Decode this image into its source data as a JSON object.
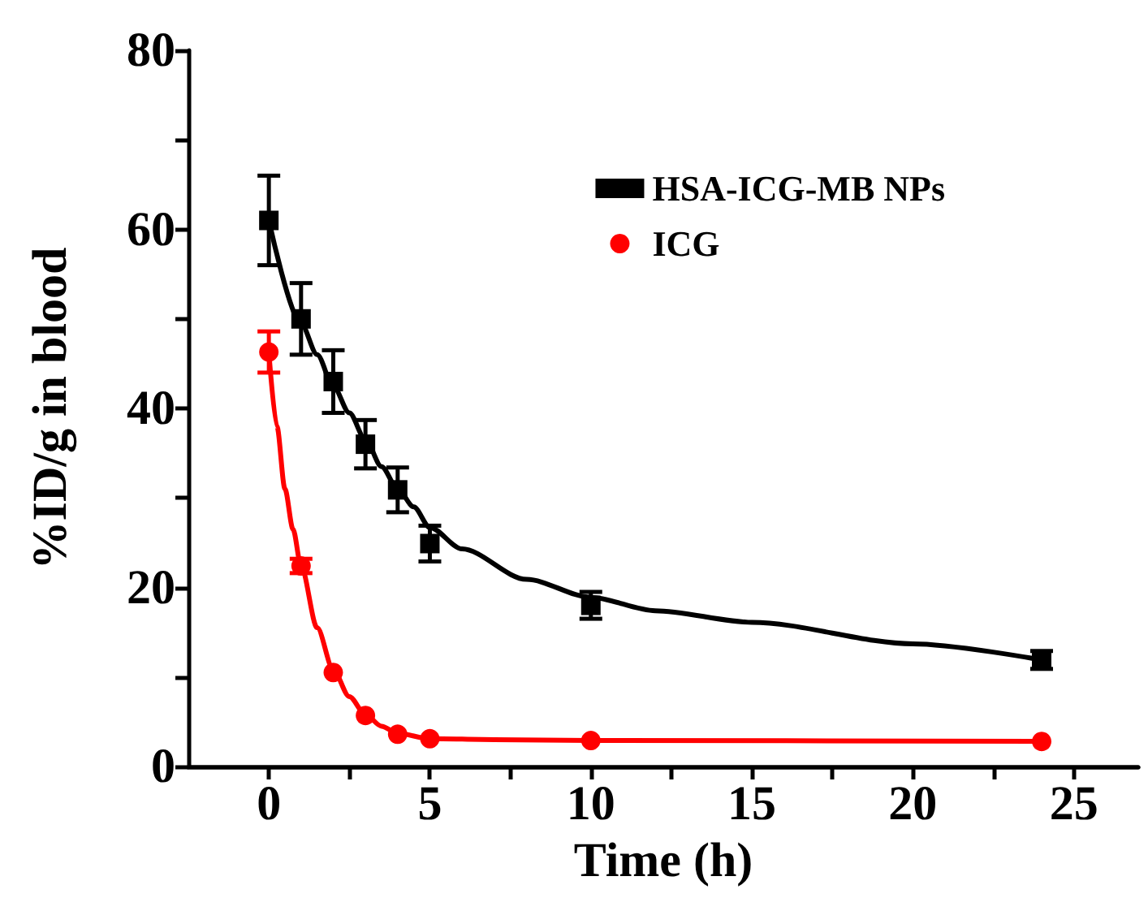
{
  "chart_data": {
    "type": "scatter",
    "xlabel": "Time (h)",
    "ylabel": "%ID/g in blood",
    "xlim": [
      -2.5,
      27
    ],
    "ylim": [
      0,
      80
    ],
    "xticks": [
      0,
      {
        "value": 2.5,
        "label": null
      },
      5,
      {
        "value": 7.5,
        "label": null
      },
      10,
      {
        "value": 12.5,
        "label": null
      },
      15,
      {
        "value": 17.5,
        "label": null
      },
      20,
      {
        "value": 22.5,
        "label": null
      },
      25
    ],
    "yticks": [
      0,
      {
        "value": 10,
        "label": null
      },
      20,
      {
        "value": 30,
        "label": null
      },
      40,
      {
        "value": 50,
        "label": null
      },
      60,
      {
        "value": 70,
        "label": null
      },
      80
    ],
    "legend": "top right",
    "grid": false,
    "series": [
      {
        "name": "HSA-ICG-MB NPs",
        "marker": "square",
        "color": "#000000",
        "x": [
          0,
          1,
          2,
          3,
          4,
          5,
          10,
          24
        ],
        "values": [
          61,
          50,
          43,
          36,
          30.9,
          24.9,
          18,
          11.9
        ],
        "errors": [
          5,
          4,
          3.5,
          2.7,
          2.5,
          2,
          1.5,
          1
        ]
      },
      {
        "name": "ICG",
        "marker": "circle",
        "color": "#ff0000",
        "x": [
          0,
          1,
          2,
          3,
          4,
          5,
          10,
          24
        ],
        "values": [
          46.3,
          22.4,
          10.5,
          5.7,
          3.6,
          3.1,
          2.9,
          2.8
        ],
        "errors": [
          2.3,
          0.8,
          null,
          null,
          null,
          null,
          null,
          null
        ]
      },
      {
        "type": "line",
        "marker": "none",
        "color": "#000000",
        "x": [
          0,
          1,
          1.5,
          2,
          2.5,
          3,
          3.5,
          4,
          4.5,
          5,
          6,
          8,
          10,
          12,
          15,
          20,
          24
        ],
        "values": [
          61,
          49.5,
          46,
          42.5,
          39.5,
          36.5,
          33.5,
          31,
          29,
          26.7,
          24.3,
          20.9,
          18.9,
          17.4,
          16.1,
          13.7,
          11.9
        ]
      },
      {
        "type": "line",
        "marker": "none",
        "color": "#ff0000",
        "x": [
          0,
          0.25,
          0.5,
          0.75,
          1,
          1.5,
          2,
          2.5,
          3,
          3.5,
          4,
          5,
          7,
          10,
          24
        ],
        "values": [
          46.3,
          38,
          31,
          26.5,
          22.4,
          15.5,
          10.8,
          7.8,
          5.8,
          4.5,
          3.7,
          3.1,
          3,
          2.9,
          2.8
        ]
      }
    ]
  }
}
